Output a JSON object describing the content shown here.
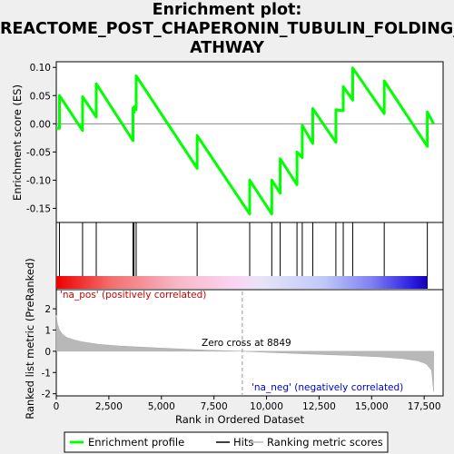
{
  "title_lines": [
    "Enrichment plot:",
    "REACTOME_POST_CHAPERONIN_TUBULIN_FOLDING_P",
    "ATHWAY"
  ],
  "chart_data": {
    "type": "line",
    "title": "Enrichment plot: REACTOME_POST_CHAPERONIN_TUBULIN_FOLDING_PATHWAY",
    "top_panel": {
      "ylabel": "Enrichment score (ES)",
      "ylim": [
        -0.175,
        0.11
      ],
      "yticks": [
        0.1,
        0.05,
        0.0,
        -0.05,
        -0.1,
        -0.15
      ],
      "ytick_labels": [
        "0.10",
        "0.05",
        "0.00",
        "-0.05",
        "-0.10",
        "-0.15"
      ],
      "series": [
        {
          "name": "Enrichment profile",
          "color": "#00ff00",
          "x": [
            0,
            150,
            1250,
            1900,
            3650,
            3700,
            3800,
            6700,
            9200,
            10250,
            10650,
            11450,
            11700,
            12200,
            13300,
            13650,
            14100,
            15600,
            17650,
            17950
          ],
          "y_before_hit": [
            -0.008,
            -0.008,
            -0.012,
            0.012,
            -0.03,
            0.02,
            0.025,
            -0.079,
            -0.16,
            -0.16,
            -0.123,
            -0.108,
            -0.06,
            -0.035,
            -0.033,
            0.023,
            0.042,
            0.018,
            -0.04,
            0.0
          ],
          "y_after_hit": [
            -0.008,
            0.05,
            0.048,
            0.071,
            0.028,
            0.03,
            0.085,
            -0.021,
            -0.1,
            -0.1,
            -0.062,
            -0.05,
            -0.003,
            0.027,
            0.025,
            0.066,
            0.099,
            0.076,
            0.021,
            0.0
          ]
        }
      ]
    },
    "hits": {
      "name": "Hits",
      "positions": [
        150,
        1250,
        1900,
        3650,
        3700,
        3800,
        6700,
        9200,
        10250,
        10650,
        11450,
        11700,
        12200,
        13300,
        13650,
        14100,
        15600,
        17650
      ]
    },
    "bottom_panel": {
      "ylabel": "Ranked list metric (PreRanked)",
      "xlabel": "Rank in Ordered Dataset",
      "ylim": [
        -2.1,
        2.9
      ],
      "yticks": [
        2,
        1,
        0,
        -1,
        -2
      ],
      "ytick_labels": [
        "2",
        "1",
        "0",
        "-1",
        "-2"
      ],
      "xlim": [
        0,
        18400
      ],
      "xticks": [
        0,
        2500,
        5000,
        7500,
        10000,
        12500,
        15000,
        17500
      ],
      "xtick_labels": [
        "0",
        "2,500",
        "5,000",
        "7,500",
        "10,000",
        "12,500",
        "15,000",
        "17,500"
      ],
      "series_name": "Ranking metric scores",
      "metric_curve": {
        "x": [
          0,
          50,
          150,
          300,
          500,
          800,
          1200,
          2000,
          3000,
          5000,
          7000,
          8849,
          10000,
          12000,
          14000,
          15500,
          16500,
          17200,
          17600,
          17850,
          17950
        ],
        "y": [
          1.7,
          1.3,
          1.0,
          0.8,
          0.65,
          0.55,
          0.45,
          0.33,
          0.25,
          0.15,
          0.06,
          0.0,
          -0.05,
          -0.13,
          -0.2,
          -0.27,
          -0.35,
          -0.45,
          -0.6,
          -0.9,
          -1.9
        ]
      },
      "zero_cross": 8849,
      "zero_cross_label": "Zero cross at 8849",
      "pos_label": "'na_pos' (positively correlated)",
      "neg_label": "'na_neg' (negatively correlated)",
      "pos_label_color": "#cc0000",
      "neg_label_color": "#0000cc"
    },
    "legend": {
      "placement": "bottom",
      "items": [
        "Enrichment profile",
        "Hits",
        "Ranking metric scores"
      ]
    }
  }
}
